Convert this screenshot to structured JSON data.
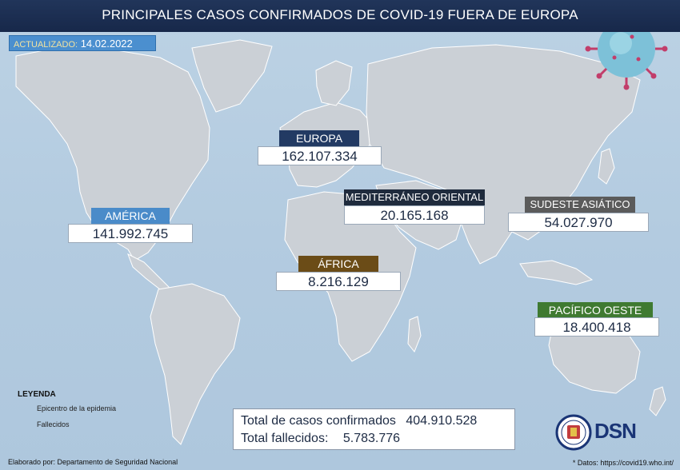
{
  "header": {
    "title": "PRINCIPALES CASOS CONFIRMADOS DE COVID-19 FUERA DE EUROPA"
  },
  "updated": {
    "label": "ACTUALIZADO:",
    "date": "14.02.2022"
  },
  "regions": [
    {
      "key": "europa",
      "name": "EUROPA",
      "value": "162.107.334",
      "color": "#223a63"
    },
    {
      "key": "america",
      "name": "AMÉRICA",
      "value": "141.992.745",
      "color": "#4a8bc9"
    },
    {
      "key": "mediterraneo",
      "name": "MEDITERRÁNEO ORIENTAL",
      "value": "20.165.168",
      "color": "#1f2b3d"
    },
    {
      "key": "sudeste",
      "name": "SUDESTE ASIÁTICO",
      "value": "54.027.970",
      "color": "#5b5b5b"
    },
    {
      "key": "africa",
      "name": "ÁFRICA",
      "value": "8.216.129",
      "color": "#6b4c17"
    },
    {
      "key": "pacifico",
      "name": "PACÍFICO OESTE",
      "value": "18.400.418",
      "color": "#3f7a31"
    }
  ],
  "legend": {
    "title": "LEYENDA",
    "items": [
      "Epicentro de la epidemia",
      "Fallecidos"
    ]
  },
  "totals": {
    "cases_label": "Total de casos confirmados",
    "cases_value": "404.910.528",
    "deaths_label": "Total fallecidos:",
    "deaths_value": "5.783.776"
  },
  "footer": {
    "credit": "Elaborado por: Departamento de Seguridad Nacional",
    "source": "* Datos: https://covid19.who.int/"
  },
  "logo": {
    "text": "DSN"
  },
  "colors": {
    "land": "#cbd0d6",
    "ocean": "#b6cde1",
    "header": "#1c2e52",
    "virus": "#7dc1d8",
    "spike": "#c23d6a"
  }
}
